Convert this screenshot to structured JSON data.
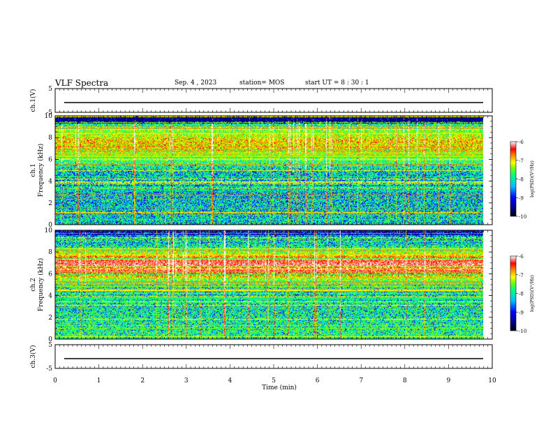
{
  "header": {
    "title": "VLF Spectra",
    "date": "Sep. 4 , 2023",
    "station": "station= MOS",
    "start": "start  UT =   8 : 30 : 1"
  },
  "colors": {
    "colormap": [
      "#00007f",
      "#0000ff",
      "#00bfff",
      "#00ff80",
      "#7fff00",
      "#ffff00",
      "#ff8000",
      "#ff0000",
      "#ff8080",
      "#ffffff"
    ],
    "background": "#ffffff",
    "ink": "#000000"
  },
  "chart_data": [
    {
      "type": "line",
      "panel": "ch1-waveform",
      "ylabel": "ch.1(V)",
      "yticks": [
        "5",
        "-5"
      ],
      "ylim": [
        -5,
        5
      ],
      "xlim": [
        0,
        10
      ],
      "series": [
        {
          "values": [
            0,
            0
          ]
        }
      ]
    },
    {
      "type": "heatmap",
      "panel": "ch1-spectrogram",
      "ylabel": "ch.1\nFrequency (kHz)",
      "yticks": [
        "0",
        "2",
        "4",
        "6",
        "8",
        "10"
      ],
      "ylim": [
        0,
        10
      ],
      "xlim": [
        0,
        10
      ],
      "colorbar": {
        "label": "log(PSD)(V²/Hz)",
        "ticks": [
          "-6",
          "-7",
          "-8",
          "-9",
          "-10"
        ],
        "range": [
          -10,
          -6
        ]
      }
    },
    {
      "type": "heatmap",
      "panel": "ch2-spectrogram",
      "ylabel": "ch.2\nFrequency (kHz)",
      "yticks": [
        "0",
        "2",
        "4",
        "6",
        "8",
        "10"
      ],
      "ylim": [
        0,
        10
      ],
      "xlim": [
        0,
        10
      ],
      "colorbar": {
        "label": "log(PSD)(V²/Hz)",
        "ticks": [
          "-6",
          "-7",
          "-8",
          "-9",
          "-10"
        ],
        "range": [
          -10,
          -6
        ]
      }
    },
    {
      "type": "line",
      "panel": "ch3-waveform",
      "ylabel": "ch.3(V)",
      "yticks": [
        "5",
        "-5"
      ],
      "ylim": [
        -5,
        5
      ],
      "xlim": [
        0,
        10
      ],
      "series": [
        {
          "values": [
            0,
            0
          ]
        }
      ]
    }
  ],
  "xaxis": {
    "label": "Time  (min)",
    "ticks": [
      "0",
      "1",
      "2",
      "3",
      "4",
      "5",
      "6",
      "7",
      "8",
      "9",
      "10"
    ]
  }
}
